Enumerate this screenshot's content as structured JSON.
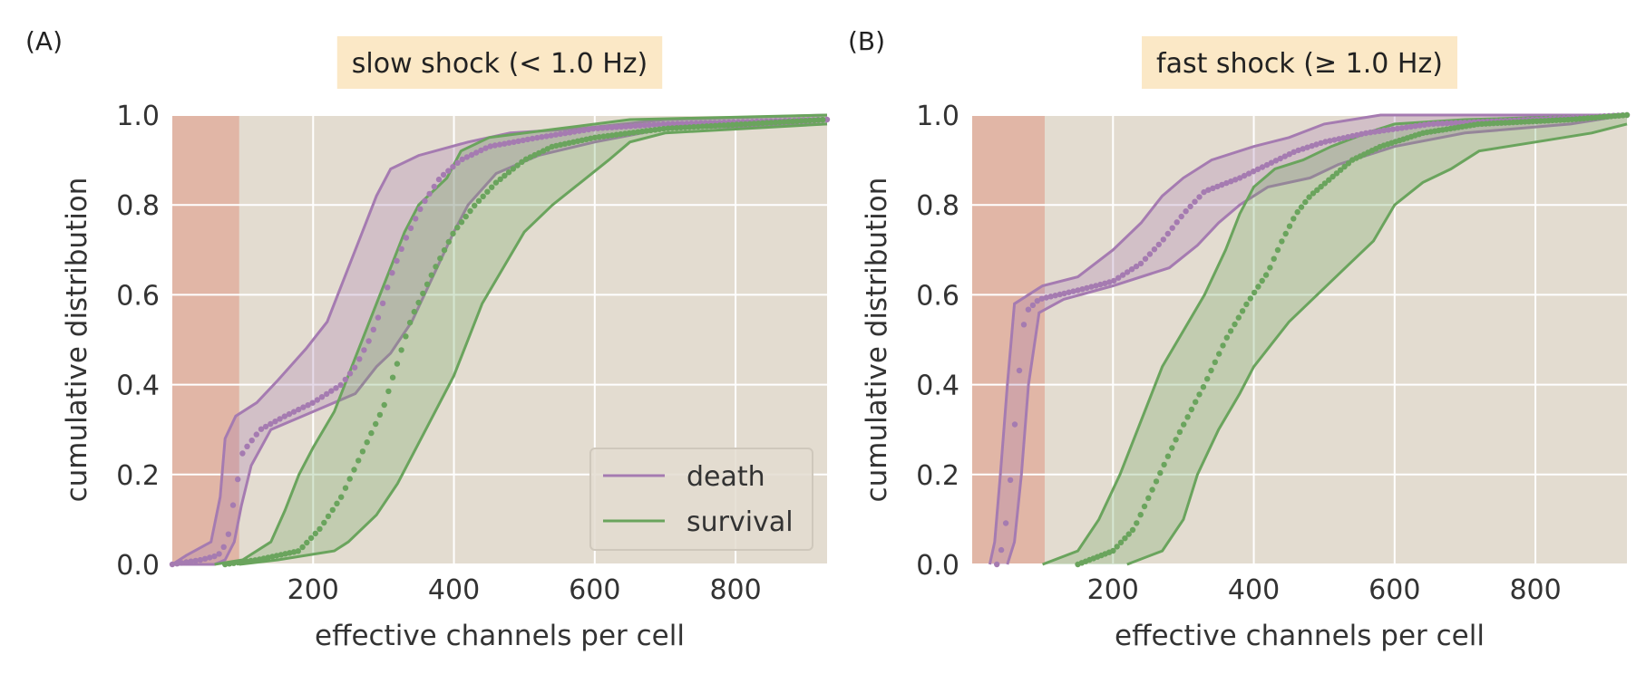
{
  "colors": {
    "background": "#e3dcd0",
    "grid": "#ffffff",
    "death": "#a57bb1",
    "survival": "#6aa45d",
    "threshold_region": "#e0a998",
    "title_box": "#fbe8c6"
  },
  "chart_data": [
    {
      "type": "line",
      "panel_label": "(A)",
      "title": "slow shock (< 1.0 Hz)",
      "xlabel": "effective channels per cell",
      "ylabel": "cumulative distribution",
      "xlim": [
        0,
        930
      ],
      "ylim": [
        0,
        1
      ],
      "xticks": [
        "200",
        "400",
        "600",
        "800"
      ],
      "yticks": [
        "0.0",
        "0.2",
        "0.4",
        "0.6",
        "0.8",
        "1.0"
      ],
      "grid": true,
      "threshold_region": [
        0,
        95
      ],
      "legend": {
        "placement": "lower-right",
        "entries": [
          "death",
          "survival"
        ]
      },
      "series": [
        {
          "name": "death",
          "color": "death",
          "median": [
            [
              0,
              0.0
            ],
            [
              40,
              0.01
            ],
            [
              65,
              0.02
            ],
            [
              78,
              0.05
            ],
            [
              85,
              0.12
            ],
            [
              100,
              0.25
            ],
            [
              125,
              0.3
            ],
            [
              160,
              0.33
            ],
            [
              200,
              0.36
            ],
            [
              240,
              0.4
            ],
            [
              260,
              0.44
            ],
            [
              280,
              0.5
            ],
            [
              295,
              0.56
            ],
            [
              310,
              0.64
            ],
            [
              330,
              0.72
            ],
            [
              355,
              0.8
            ],
            [
              380,
              0.86
            ],
            [
              410,
              0.9
            ],
            [
              450,
              0.93
            ],
            [
              520,
              0.95
            ],
            [
              600,
              0.97
            ],
            [
              700,
              0.98
            ],
            [
              930,
              0.99
            ]
          ],
          "lower": [
            [
              0,
              0.0
            ],
            [
              60,
              0.0
            ],
            [
              75,
              0.01
            ],
            [
              88,
              0.05
            ],
            [
              98,
              0.13
            ],
            [
              112,
              0.22
            ],
            [
              140,
              0.3
            ],
            [
              200,
              0.34
            ],
            [
              260,
              0.38
            ],
            [
              290,
              0.44
            ],
            [
              310,
              0.47
            ],
            [
              340,
              0.54
            ],
            [
              370,
              0.64
            ],
            [
              400,
              0.74
            ],
            [
              420,
              0.8
            ],
            [
              460,
              0.87
            ],
            [
              520,
              0.91
            ],
            [
              600,
              0.94
            ],
            [
              700,
              0.97
            ],
            [
              930,
              0.98
            ]
          ],
          "upper": [
            [
              0,
              0.0
            ],
            [
              20,
              0.02
            ],
            [
              55,
              0.05
            ],
            [
              68,
              0.15
            ],
            [
              75,
              0.28
            ],
            [
              90,
              0.33
            ],
            [
              120,
              0.36
            ],
            [
              150,
              0.41
            ],
            [
              190,
              0.48
            ],
            [
              220,
              0.54
            ],
            [
              245,
              0.64
            ],
            [
              270,
              0.74
            ],
            [
              290,
              0.82
            ],
            [
              310,
              0.88
            ],
            [
              350,
              0.91
            ],
            [
              420,
              0.94
            ],
            [
              480,
              0.96
            ],
            [
              580,
              0.97
            ],
            [
              700,
              0.99
            ],
            [
              930,
              1.0
            ]
          ]
        },
        {
          "name": "survival",
          "color": "survival",
          "median": [
            [
              75,
              0.0
            ],
            [
              120,
              0.01
            ],
            [
              180,
              0.03
            ],
            [
              210,
              0.08
            ],
            [
              240,
              0.15
            ],
            [
              270,
              0.25
            ],
            [
              300,
              0.35
            ],
            [
              320,
              0.45
            ],
            [
              340,
              0.55
            ],
            [
              370,
              0.65
            ],
            [
              400,
              0.74
            ],
            [
              430,
              0.8
            ],
            [
              460,
              0.85
            ],
            [
              500,
              0.9
            ],
            [
              540,
              0.93
            ],
            [
              600,
              0.95
            ],
            [
              700,
              0.97
            ],
            [
              930,
              0.99
            ]
          ],
          "lower": [
            [
              95,
              0.0
            ],
            [
              150,
              0.01
            ],
            [
              230,
              0.03
            ],
            [
              250,
              0.05
            ],
            [
              290,
              0.11
            ],
            [
              320,
              0.18
            ],
            [
              360,
              0.3
            ],
            [
              400,
              0.42
            ],
            [
              420,
              0.5
            ],
            [
              440,
              0.58
            ],
            [
              470,
              0.66
            ],
            [
              500,
              0.74
            ],
            [
              540,
              0.8
            ],
            [
              580,
              0.85
            ],
            [
              620,
              0.9
            ],
            [
              650,
              0.94
            ],
            [
              700,
              0.96
            ],
            [
              930,
              0.98
            ]
          ],
          "upper": [
            [
              60,
              0.0
            ],
            [
              100,
              0.01
            ],
            [
              140,
              0.05
            ],
            [
              160,
              0.12
            ],
            [
              180,
              0.2
            ],
            [
              200,
              0.26
            ],
            [
              230,
              0.34
            ],
            [
              260,
              0.46
            ],
            [
              290,
              0.58
            ],
            [
              310,
              0.66
            ],
            [
              330,
              0.74
            ],
            [
              350,
              0.8
            ],
            [
              390,
              0.86
            ],
            [
              410,
              0.92
            ],
            [
              450,
              0.95
            ],
            [
              550,
              0.97
            ],
            [
              650,
              0.99
            ],
            [
              930,
              1.0
            ]
          ]
        }
      ]
    },
    {
      "type": "line",
      "panel_label": "(B)",
      "title": "fast shock (≥ 1.0 Hz)",
      "xlabel": "effective channels per cell",
      "ylabel": "cumulative distribution",
      "xlim": [
        0,
        930
      ],
      "ylim": [
        0,
        1
      ],
      "xticks": [
        "200",
        "400",
        "600",
        "800"
      ],
      "yticks": [
        "0.0",
        "0.2",
        "0.4",
        "0.6",
        "0.8",
        "1.0"
      ],
      "grid": true,
      "threshold_region": [
        0,
        103
      ],
      "legend": null,
      "series": [
        {
          "name": "death",
          "color": "death",
          "median": [
            [
              35,
              0.0
            ],
            [
              45,
              0.05
            ],
            [
              55,
              0.2
            ],
            [
              65,
              0.4
            ],
            [
              75,
              0.56
            ],
            [
              95,
              0.59
            ],
            [
              150,
              0.61
            ],
            [
              200,
              0.63
            ],
            [
              240,
              0.67
            ],
            [
              270,
              0.72
            ],
            [
              300,
              0.78
            ],
            [
              330,
              0.83
            ],
            [
              380,
              0.86
            ],
            [
              420,
              0.89
            ],
            [
              460,
              0.92
            ],
            [
              500,
              0.94
            ],
            [
              560,
              0.96
            ],
            [
              650,
              0.98
            ],
            [
              800,
              0.99
            ],
            [
              930,
              1.0
            ]
          ],
          "lower": [
            [
              50,
              0.0
            ],
            [
              60,
              0.05
            ],
            [
              70,
              0.2
            ],
            [
              80,
              0.4
            ],
            [
              95,
              0.56
            ],
            [
              130,
              0.59
            ],
            [
              200,
              0.62
            ],
            [
              280,
              0.66
            ],
            [
              320,
              0.71
            ],
            [
              350,
              0.76
            ],
            [
              380,
              0.8
            ],
            [
              420,
              0.84
            ],
            [
              480,
              0.86
            ],
            [
              520,
              0.89
            ],
            [
              600,
              0.93
            ],
            [
              700,
              0.96
            ],
            [
              850,
              0.98
            ],
            [
              930,
              1.0
            ]
          ],
          "upper": [
            [
              25,
              0.0
            ],
            [
              32,
              0.05
            ],
            [
              40,
              0.2
            ],
            [
              50,
              0.4
            ],
            [
              60,
              0.58
            ],
            [
              100,
              0.62
            ],
            [
              150,
              0.64
            ],
            [
              200,
              0.7
            ],
            [
              240,
              0.76
            ],
            [
              270,
              0.82
            ],
            [
              300,
              0.86
            ],
            [
              340,
              0.9
            ],
            [
              400,
              0.93
            ],
            [
              450,
              0.95
            ],
            [
              500,
              0.98
            ],
            [
              580,
              1.0
            ],
            [
              930,
              1.0
            ]
          ]
        },
        {
          "name": "survival",
          "color": "survival",
          "median": [
            [
              150,
              0.0
            ],
            [
              200,
              0.03
            ],
            [
              230,
              0.08
            ],
            [
              260,
              0.18
            ],
            [
              290,
              0.28
            ],
            [
              330,
              0.4
            ],
            [
              360,
              0.5
            ],
            [
              390,
              0.58
            ],
            [
              420,
              0.65
            ],
            [
              440,
              0.72
            ],
            [
              460,
              0.78
            ],
            [
              480,
              0.82
            ],
            [
              510,
              0.86
            ],
            [
              540,
              0.9
            ],
            [
              580,
              0.93
            ],
            [
              640,
              0.96
            ],
            [
              720,
              0.98
            ],
            [
              850,
              0.99
            ],
            [
              930,
              1.0
            ]
          ],
          "lower": [
            [
              220,
              0.0
            ],
            [
              270,
              0.03
            ],
            [
              300,
              0.1
            ],
            [
              320,
              0.2
            ],
            [
              350,
              0.3
            ],
            [
              380,
              0.38
            ],
            [
              400,
              0.44
            ],
            [
              420,
              0.48
            ],
            [
              450,
              0.54
            ],
            [
              490,
              0.6
            ],
            [
              530,
              0.66
            ],
            [
              570,
              0.72
            ],
            [
              600,
              0.8
            ],
            [
              640,
              0.85
            ],
            [
              680,
              0.88
            ],
            [
              720,
              0.92
            ],
            [
              800,
              0.94
            ],
            [
              880,
              0.96
            ],
            [
              930,
              0.98
            ]
          ],
          "upper": [
            [
              100,
              0.0
            ],
            [
              150,
              0.03
            ],
            [
              180,
              0.1
            ],
            [
              210,
              0.2
            ],
            [
              240,
              0.32
            ],
            [
              270,
              0.44
            ],
            [
              300,
              0.52
            ],
            [
              330,
              0.6
            ],
            [
              360,
              0.7
            ],
            [
              380,
              0.78
            ],
            [
              400,
              0.84
            ],
            [
              430,
              0.88
            ],
            [
              470,
              0.9
            ],
            [
              510,
              0.93
            ],
            [
              560,
              0.96
            ],
            [
              600,
              0.98
            ],
            [
              700,
              0.99
            ],
            [
              930,
              1.0
            ]
          ]
        }
      ]
    }
  ]
}
